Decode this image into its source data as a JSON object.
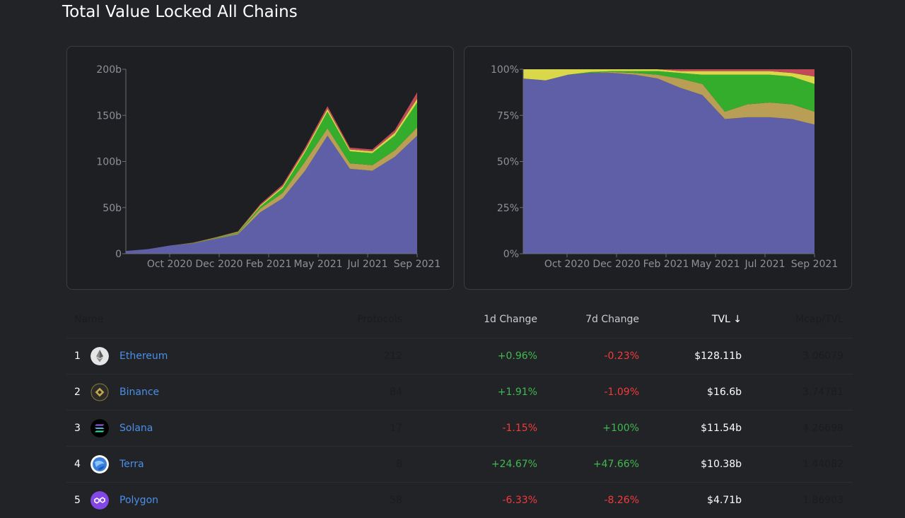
{
  "page": {
    "title": "Total Value Locked All Chains"
  },
  "colors": {
    "ethereum": "#5f5fa8",
    "binance": "#b89f55",
    "green": "#34ad2c",
    "yellow": "#d8d84a",
    "red": "#c04a58",
    "grid_text": "#8e9199",
    "positive": "#3fb950",
    "negative": "#f33b3b",
    "link": "#4a8fe8"
  },
  "chart_data": [
    {
      "type": "area",
      "stacked": true,
      "x_ticks": [
        "Oct 2020",
        "Dec 2020",
        "Feb 2021",
        "May 2021",
        "Jul 2021",
        "Sep 2021"
      ],
      "y_ticks": [
        "0",
        "50b",
        "100b",
        "150b",
        "200b"
      ],
      "ylim": [
        0,
        200
      ],
      "x": [
        "Aug 2020",
        "Sep 2020",
        "Oct 2020",
        "Nov 2020",
        "Dec 2020",
        "Jan 2021",
        "Feb 2021",
        "Mar 2021",
        "Apr 2021",
        "May 2021",
        "Jun 2021",
        "Jul 2021",
        "Aug 2021",
        "Sep 2021"
      ],
      "series": [
        {
          "values": [
            3,
            5,
            9,
            11,
            16,
            21,
            45,
            60,
            90,
            128,
            92,
            90,
            105,
            128
          ],
          "color_key": "ethereum"
        },
        {
          "values": [
            0,
            0,
            0,
            0.3,
            0.5,
            1,
            4,
            6,
            10,
            8,
            6,
            6,
            7,
            9
          ],
          "color_key": "binance"
        },
        {
          "values": [
            0,
            0,
            0,
            0.3,
            0.5,
            1,
            2,
            5,
            10,
            18,
            13,
            13,
            16,
            27
          ],
          "color_key": "green"
        },
        {
          "values": [
            0,
            0,
            0,
            0.2,
            0.4,
            0.6,
            1.4,
            2,
            2.5,
            3,
            2,
            2,
            3,
            4
          ],
          "color_key": "yellow"
        },
        {
          "values": [
            0,
            0,
            0,
            0.2,
            0.4,
            0.6,
            1.4,
            2,
            2.5,
            3,
            2,
            2,
            3,
            7
          ],
          "color_key": "red"
        }
      ]
    },
    {
      "type": "area",
      "stacked": true,
      "percent": true,
      "x_ticks": [
        "Oct 2020",
        "Dec 2020",
        "Feb 2021",
        "May 2021",
        "Jul 2021",
        "Sep 2021"
      ],
      "y_ticks": [
        "0%",
        "25%",
        "50%",
        "75%",
        "100%"
      ],
      "ylim": [
        0,
        100
      ],
      "x": [
        "Aug 2020",
        "Sep 2020",
        "Oct 2020",
        "Nov 2020",
        "Dec 2020",
        "Jan 2021",
        "Feb 2021",
        "Mar 2021",
        "Apr 2021",
        "May 2021",
        "Jun 2021",
        "Jul 2021",
        "Aug 2021",
        "Sep 2021"
      ],
      "series": [
        {
          "values": [
            95,
            94,
            97,
            98,
            98,
            97,
            95,
            90,
            86,
            73,
            74,
            74,
            73,
            70
          ],
          "color_key": "ethereum"
        },
        {
          "values": [
            0,
            0,
            0,
            0,
            0.5,
            1,
            2,
            5,
            6,
            4,
            7,
            8,
            8,
            7
          ],
          "color_key": "binance"
        },
        {
          "values": [
            0,
            0,
            0,
            0.5,
            0.5,
            1,
            2,
            3,
            5,
            20,
            16,
            15,
            15,
            15
          ],
          "color_key": "green"
        },
        {
          "values": [
            5,
            6,
            3,
            1.5,
            1,
            1,
            1,
            1,
            2,
            2,
            2,
            2,
            2,
            4
          ],
          "color_key": "yellow"
        },
        {
          "values": [
            0,
            0,
            0,
            0,
            0,
            0,
            0,
            1,
            1,
            1,
            1,
            1,
            2,
            4
          ],
          "color_key": "red"
        }
      ]
    }
  ],
  "table": {
    "headers": {
      "name": "Name",
      "protocols": "Protocols",
      "change_1d": "1d Change",
      "change_7d": "7d Change",
      "tvl": "TVL ↓",
      "mcap_tvl": "Mcap/TVL"
    },
    "rows": [
      {
        "rank": "1",
        "name": "Ethereum",
        "icon": "ethereum-icon",
        "protocols": "212",
        "change_1d": "+0.96%",
        "change_7d": "-0.23%",
        "tvl": "$128.11b",
        "mcap_tvl": "3.06079"
      },
      {
        "rank": "2",
        "name": "Binance",
        "icon": "binance-icon",
        "protocols": "84",
        "change_1d": "+1.91%",
        "change_7d": "-1.09%",
        "tvl": "$16.6b",
        "mcap_tvl": "3.74781"
      },
      {
        "rank": "3",
        "name": "Solana",
        "icon": "solana-icon",
        "protocols": "17",
        "change_1d": "-1.15%",
        "change_7d": "+100%",
        "tvl": "$11.54b",
        "mcap_tvl": "4.26698"
      },
      {
        "rank": "4",
        "name": "Terra",
        "icon": "terra-icon",
        "protocols": "8",
        "change_1d": "+24.67%",
        "change_7d": "+47.66%",
        "tvl": "$10.38b",
        "mcap_tvl": "1.44082"
      },
      {
        "rank": "5",
        "name": "Polygon",
        "icon": "polygon-icon",
        "protocols": "58",
        "change_1d": "-6.33%",
        "change_7d": "-8.26%",
        "tvl": "$4.71b",
        "mcap_tvl": "1.86903"
      }
    ]
  }
}
